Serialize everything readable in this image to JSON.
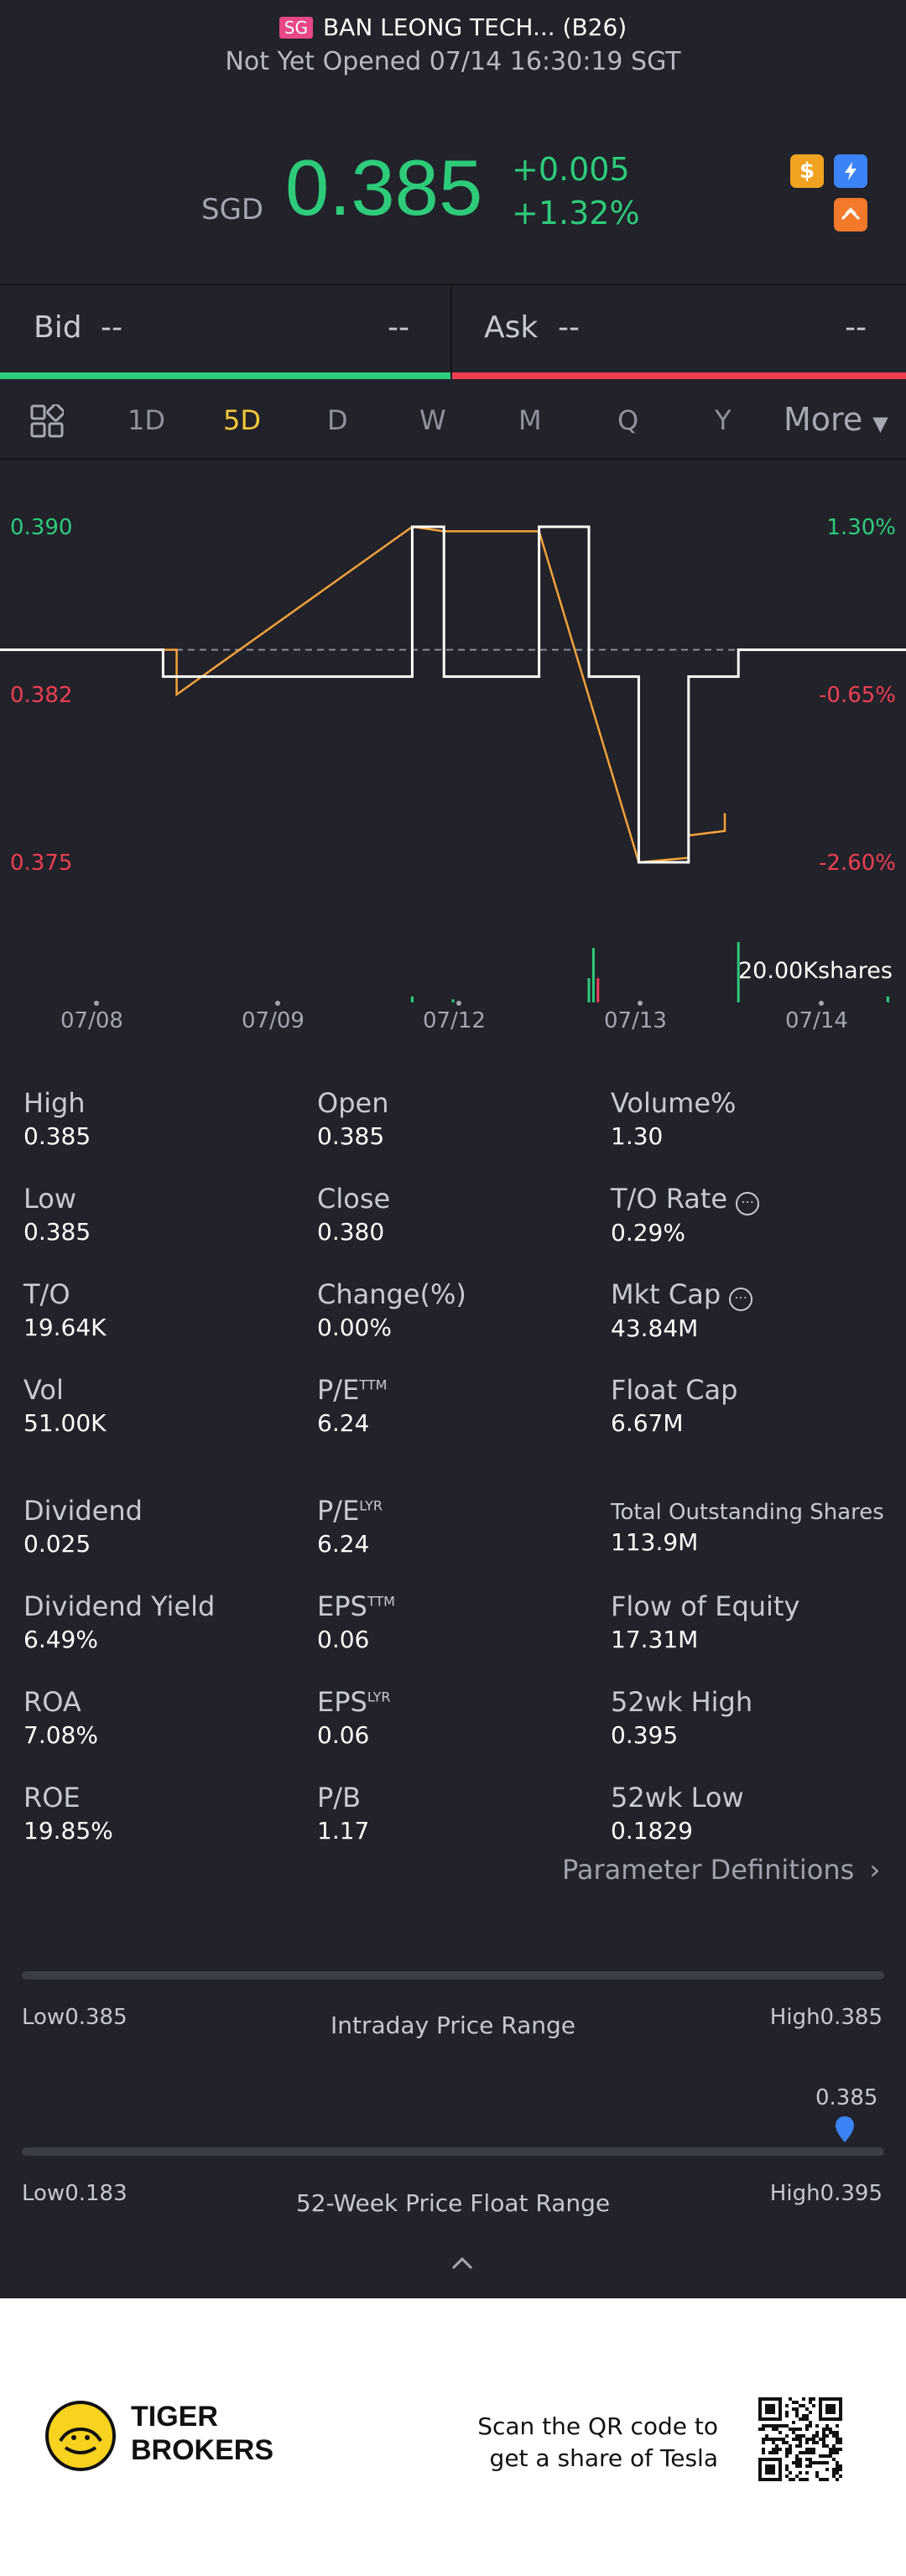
{
  "header": {
    "market_badge": "SG",
    "title": "BAN LEONG TECH... (B26)",
    "status": "Not Yet Opened 07/14 16:30:19 SGT"
  },
  "quote": {
    "currency": "SGD",
    "price": "0.385",
    "change": "+0.005",
    "change_pct": "+1.32%",
    "icons": [
      "dollar-icon",
      "flash-icon",
      "stack-icon"
    ],
    "colors": {
      "up": "#2ecb7a",
      "down": "#ef3f52"
    }
  },
  "bidask": {
    "bid_label": "Bid",
    "bid_price": "--",
    "bid_size": "--",
    "ask_label": "Ask",
    "ask_price": "--",
    "ask_size": "--"
  },
  "tabs": {
    "items": [
      "1D",
      "5D",
      "D",
      "W",
      "M",
      "Q",
      "Y"
    ],
    "active": "5D",
    "more": "More"
  },
  "chart_data": {
    "type": "line",
    "left_ticks": [
      "0.390",
      "0.382",
      "0.375"
    ],
    "right_ticks": [
      "1.30%",
      "-0.65%",
      "-2.60%"
    ],
    "x_labels": [
      "07/08",
      "07/09",
      "07/12",
      "07/13",
      "07/14"
    ],
    "volume_label": "20.00Kshares",
    "prev_close": 0.3845,
    "ylim": [
      0.375,
      0.39
    ],
    "price_series": [
      [
        0,
        0.3845
      ],
      [
        0.18,
        0.3845
      ],
      [
        0.18,
        0.3833
      ],
      [
        0.455,
        0.3833
      ],
      [
        0.455,
        0.39
      ],
      [
        0.49,
        0.39
      ],
      [
        0.49,
        0.3833
      ],
      [
        0.595,
        0.3833
      ],
      [
        0.595,
        0.39
      ],
      [
        0.65,
        0.39
      ],
      [
        0.65,
        0.3833
      ],
      [
        0.705,
        0.3833
      ],
      [
        0.705,
        0.375
      ],
      [
        0.76,
        0.375
      ],
      [
        0.76,
        0.3833
      ],
      [
        0.815,
        0.3833
      ],
      [
        0.815,
        0.3845
      ],
      [
        1.0,
        0.3845
      ]
    ],
    "avg_series": [
      [
        0.18,
        0.3845
      ],
      [
        0.195,
        0.3845
      ],
      [
        0.195,
        0.3825
      ],
      [
        0.455,
        0.39
      ],
      [
        0.49,
        0.3898
      ],
      [
        0.595,
        0.3898
      ],
      [
        0.705,
        0.375
      ],
      [
        0.76,
        0.3752
      ],
      [
        0.76,
        0.3762
      ],
      [
        0.8,
        0.3764
      ],
      [
        0.8,
        0.3771
      ],
      [
        0.8,
        0.3772
      ]
    ],
    "volume_bars": [
      [
        0.455,
        0.04
      ],
      [
        0.5,
        0.02
      ],
      [
        0.65,
        0.16
      ],
      [
        0.655,
        0.36
      ],
      [
        0.66,
        0.16
      ],
      [
        0.815,
        0.4
      ],
      [
        0.98,
        0.04
      ]
    ]
  },
  "stats": {
    "high_label": "High",
    "high": "0.385",
    "open_label": "Open",
    "open": "0.385",
    "volpct_label": "Volume%",
    "volpct": "1.30",
    "low_label": "Low",
    "low": "0.385",
    "close_label": "Close",
    "close": "0.380",
    "torate_label": "T/O Rate",
    "torate": "0.29%",
    "to_label": "T/O",
    "to": "19.64K",
    "changepct_label": "Change(%)",
    "changepct": "0.00%",
    "mktcap_label": "Mkt Cap",
    "mktcap": "43.84M",
    "vol_label": "Vol",
    "vol": "51.00K",
    "pe_ttm_label": "P/E",
    "pe_ttm_sup": "TTM",
    "pe_ttm": "6.24",
    "floatcap_label": "Float Cap",
    "floatcap": "6.67M",
    "dividend_label": "Dividend",
    "dividend": "0.025",
    "pe_lyr_label": "P/E",
    "pe_lyr_sup": "LYR",
    "pe_lyr": "6.24",
    "tos_label": "Total Outstanding Shares",
    "tos": "113.9M",
    "divyield_label": "Dividend Yield",
    "divyield": "6.49%",
    "eps_ttm_label": "EPS",
    "eps_ttm_sup": "TTM",
    "eps_ttm": "0.06",
    "flow_label": "Flow of Equity",
    "flow": "17.31M",
    "roa_label": "ROA",
    "roa": "7.08%",
    "eps_lyr_label": "EPS",
    "eps_lyr_sup": "LYR",
    "eps_lyr": "0.06",
    "hi52_label": "52wk High",
    "hi52": "0.395",
    "roe_label": "ROE",
    "roe": "19.85%",
    "pb_label": "P/B",
    "pb": "1.17",
    "lo52_label": "52wk Low",
    "lo52": "0.1829",
    "info_glyph": "⋯",
    "param_link": "Parameter Definitions"
  },
  "ranges": {
    "intraday_low": "Low0.385",
    "intraday_title": "Intraday Price Range",
    "intraday_high": "High0.385",
    "week52_current": "0.385",
    "week52_low": "Low0.183",
    "week52_title": "52-Week Price Float Range",
    "week52_high": "High0.395",
    "week52_position": 0.95
  },
  "footer": {
    "brand_line1": "TIGER",
    "brand_line2": "BROKERS",
    "scan_line1": "Scan the QR code to",
    "scan_line2": "get a share of Tesla"
  }
}
